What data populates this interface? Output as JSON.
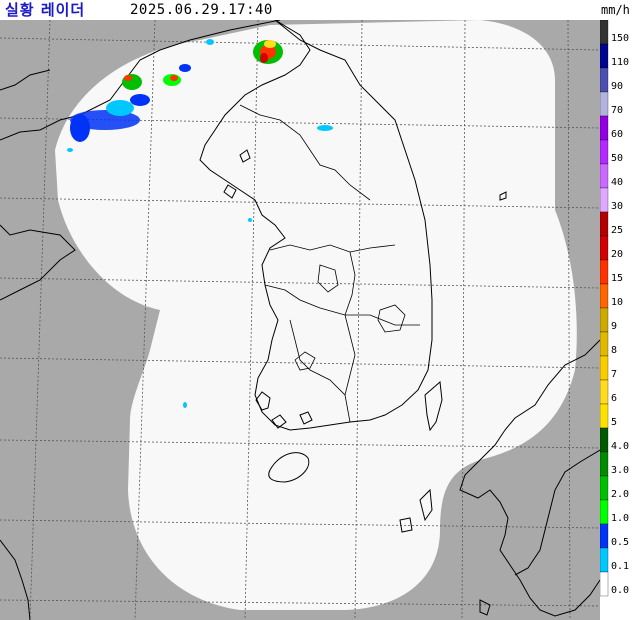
{
  "header": {
    "title": "실황 레이더",
    "timestamp": "2025.06.29.17:40",
    "unit": "mm/h"
  },
  "legend": {
    "items": [
      {
        "label": "150",
        "color": "#333333"
      },
      {
        "label": "110",
        "color": "#000390"
      },
      {
        "label": "90",
        "color": "#4c4eb1"
      },
      {
        "label": "70",
        "color": "#b3b4de"
      },
      {
        "label": "60",
        "color": "#9300e4"
      },
      {
        "label": "50",
        "color": "#b329ff"
      },
      {
        "label": "40",
        "color": "#c969ff"
      },
      {
        "label": "30",
        "color": "#e0a9ff"
      },
      {
        "label": "25",
        "color": "#b40000"
      },
      {
        "label": "20",
        "color": "#d20000"
      },
      {
        "label": "15",
        "color": "#ff3200"
      },
      {
        "label": "10",
        "color": "#ff6600"
      },
      {
        "label": "9",
        "color": "#ccaa00"
      },
      {
        "label": "8",
        "color": "#e0b900"
      },
      {
        "label": "7",
        "color": "#f9cd00"
      },
      {
        "label": "6",
        "color": "#ffdc1f"
      },
      {
        "label": "5",
        "color": "#ffe100"
      },
      {
        "label": "4.0",
        "color": "#005a00"
      },
      {
        "label": "3.0",
        "color": "#008c00"
      },
      {
        "label": "2.0",
        "color": "#00be00"
      },
      {
        "label": "1.0",
        "color": "#00ff00"
      },
      {
        "label": "0.5",
        "color": "#0033f5"
      },
      {
        "label": "0.1",
        "color": "#00c8ff"
      },
      {
        "label": "0.0",
        "color": "#ffffff"
      }
    ]
  },
  "colors": {
    "outside": "#a9a9a9",
    "coverage": "#f8f8f8",
    "boundary": "#000000",
    "grid": "#555555"
  }
}
